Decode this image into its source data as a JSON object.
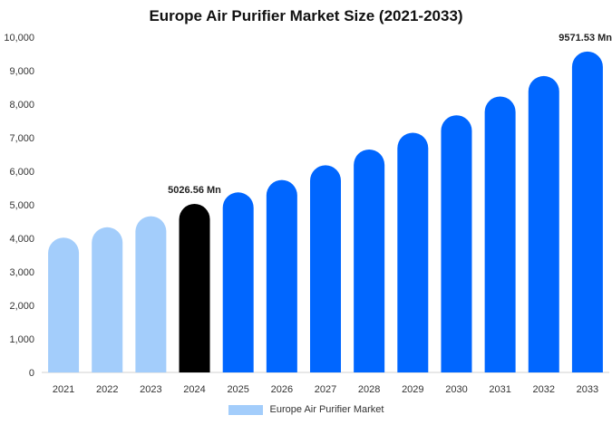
{
  "chart_data": {
    "type": "bar",
    "title": "Europe Air Purifier Market Size (2021-2033)",
    "xlabel": "",
    "ylabel": "",
    "categories": [
      "2021",
      "2022",
      "2023",
      "2024",
      "2025",
      "2026",
      "2027",
      "2028",
      "2029",
      "2030",
      "2031",
      "2032",
      "2033"
    ],
    "series": [
      {
        "name": "Europe Air Purifier Market",
        "values": [
          4020,
          4330,
          4660,
          5026.56,
          5370,
          5740,
          6180,
          6650,
          7150,
          7670,
          8230,
          8840,
          9571.53
        ]
      }
    ],
    "ylim": [
      0,
      10000
    ],
    "yticks": [
      0,
      1000,
      2000,
      3000,
      4000,
      5000,
      6000,
      7000,
      8000,
      9000,
      10000
    ],
    "ytick_labels": [
      "0",
      "1,000",
      "2,000",
      "3,000",
      "4,000",
      "5,000",
      "6,000",
      "7,000",
      "8,000",
      "9,000",
      "10,000"
    ],
    "bar_colors": [
      "#a3cdfb",
      "#a3cdfb",
      "#a3cdfb",
      "#000000",
      "#0066ff",
      "#0066ff",
      "#0066ff",
      "#0066ff",
      "#0066ff",
      "#0066ff",
      "#0066ff",
      "#0066ff",
      "#0066ff"
    ],
    "data_labels": [
      {
        "category": "2024",
        "text": "5026.56 Mn"
      },
      {
        "category": "2033",
        "text": "9571.53 Mn"
      }
    ],
    "legend_color": "#a3cdfb",
    "legend_position": "bottom-center",
    "grid": false
  }
}
